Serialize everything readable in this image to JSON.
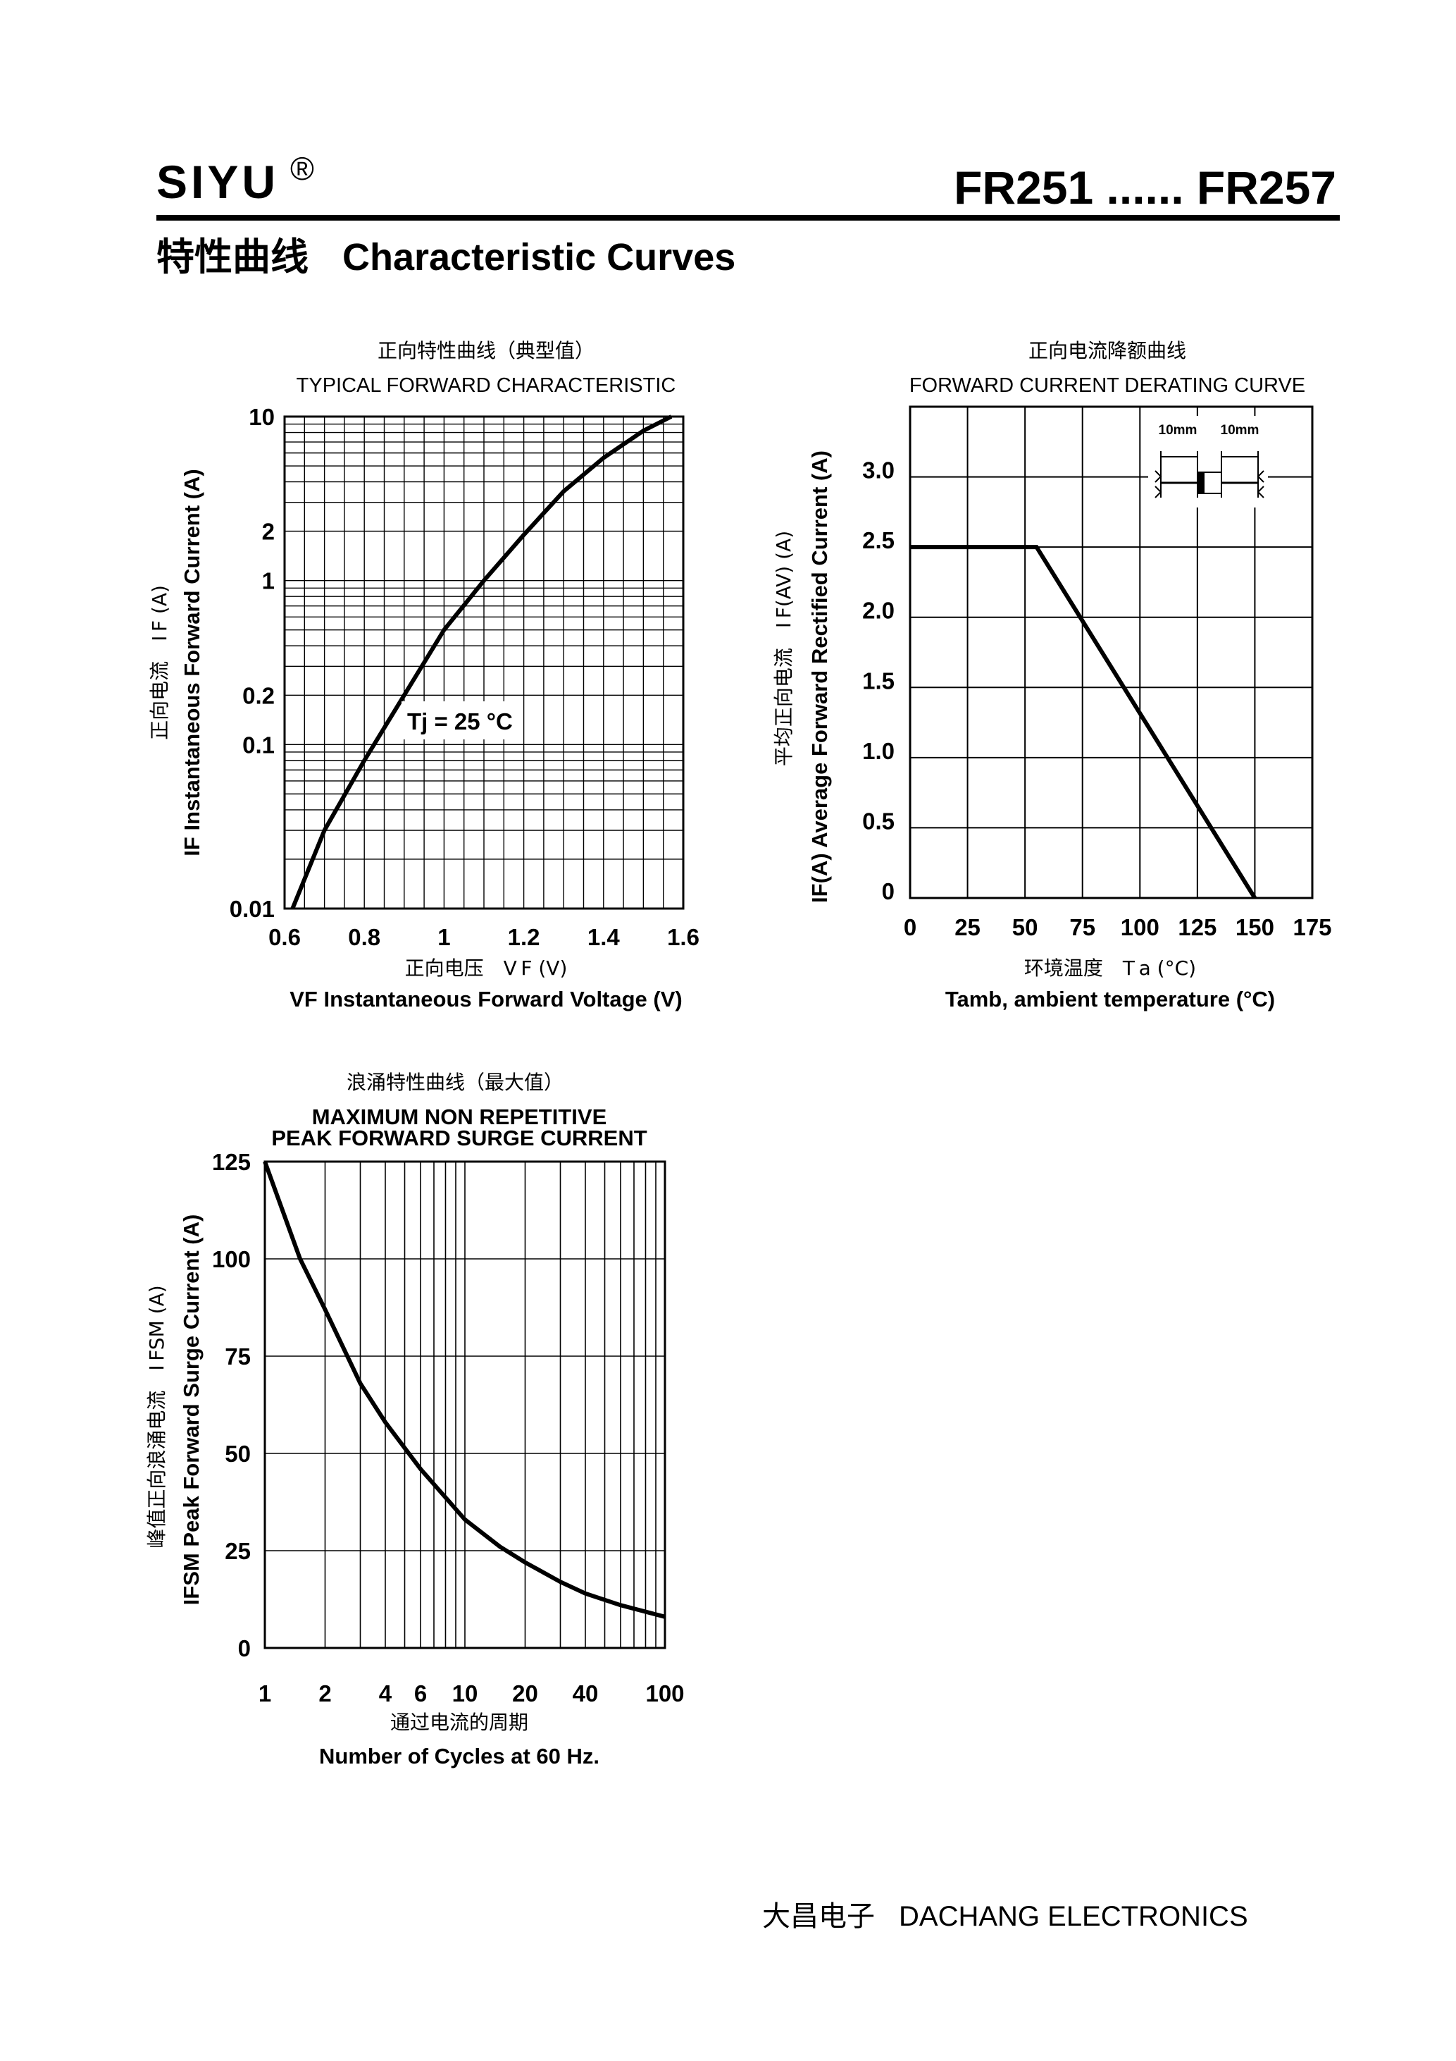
{
  "header": {
    "brand": "SIYU",
    "registered_mark": "®",
    "part_range": "FR251 ...... FR257",
    "section_title_cn": "特性曲线",
    "section_title_en": "Characteristic Curves"
  },
  "footer": {
    "company_cn": "大昌电子",
    "company_en": "DACHANG ELECTRONICS"
  },
  "chart_data": [
    {
      "id": "forward-characteristic",
      "type": "line",
      "title_cn": "正向特性曲线（典型值）",
      "title": "TYPICAL FORWARD CHARACTERISTIC",
      "xlabel_cn": "正向电压　V F (V)",
      "xlabel": "VF Instantaneous Forward Voltage (V)",
      "ylabel_cn": "正向电流　I F (A)",
      "ylabel": "IF Instantaneous Forward Current (A)",
      "x_ticks": [
        "0.6",
        "0.8",
        "1",
        "1.2",
        "1.4",
        "1.6"
      ],
      "y_ticks": [
        "0.01",
        "0.1",
        "0.2",
        "1",
        "2",
        "10"
      ],
      "xlim": [
        0.6,
        1.6
      ],
      "ylim": [
        0.01,
        10
      ],
      "y_scale": "log",
      "grid": true,
      "annotation": "Tj = 25 °C",
      "x": [
        0.62,
        0.7,
        0.8,
        0.9,
        1.0,
        1.1,
        1.2,
        1.3,
        1.4,
        1.5,
        1.57
      ],
      "y": [
        0.01,
        0.03,
        0.08,
        0.2,
        0.5,
        1.0,
        1.9,
        3.5,
        5.6,
        8.2,
        10.0
      ]
    },
    {
      "id": "derating-curve",
      "type": "line",
      "title_cn": "正向电流降额曲线",
      "title": "FORWARD CURRENT DERATING CURVE",
      "xlabel_cn": "环境温度　T a (°C)",
      "xlabel": "Tamb, ambient temperature (°C)",
      "ylabel_cn": "平均正向电流　I F(AV) (A)",
      "ylabel": "IF(A) Average Forward Rectified Current (A)",
      "x_ticks": [
        "0",
        "25",
        "50",
        "75",
        "100",
        "125",
        "150",
        "175"
      ],
      "y_ticks": [
        "0",
        "0.5",
        "1.0",
        "1.5",
        "2.0",
        "2.5",
        "3.0"
      ],
      "xlim": [
        0,
        175
      ],
      "ylim": [
        0,
        3.5
      ],
      "grid": true,
      "inset_labels": [
        "10mm",
        "10mm"
      ],
      "x": [
        0,
        55,
        150
      ],
      "y": [
        2.5,
        2.5,
        0
      ]
    },
    {
      "id": "surge-current",
      "type": "line",
      "title_cn": "浪涌特性曲线（最大值）",
      "title": "MAXIMUM NON REPETITIVE\nPEAK FORWARD SURGE CURRENT",
      "xlabel_cn": "通过电流的周期",
      "xlabel": "Number  of  Cycles at 60 Hz.",
      "ylabel_cn": "峰值正向浪涌电流　I FSM (A)",
      "ylabel": "IFSM Peak Forward Surge Current (A)",
      "x_ticks": [
        "1",
        "2",
        "4",
        "6",
        "10",
        "20",
        "40",
        "100"
      ],
      "y_ticks": [
        "0",
        "25",
        "50",
        "75",
        "100",
        "125"
      ],
      "xlim": [
        1,
        100
      ],
      "ylim": [
        0,
        125
      ],
      "x_scale": "log",
      "grid": true,
      "x": [
        1,
        1.5,
        2,
        3,
        4,
        6,
        10,
        15,
        20,
        30,
        40,
        60,
        100
      ],
      "y": [
        125,
        100,
        87,
        68,
        58,
        46,
        33,
        26,
        22,
        17,
        14,
        11,
        8
      ]
    }
  ]
}
